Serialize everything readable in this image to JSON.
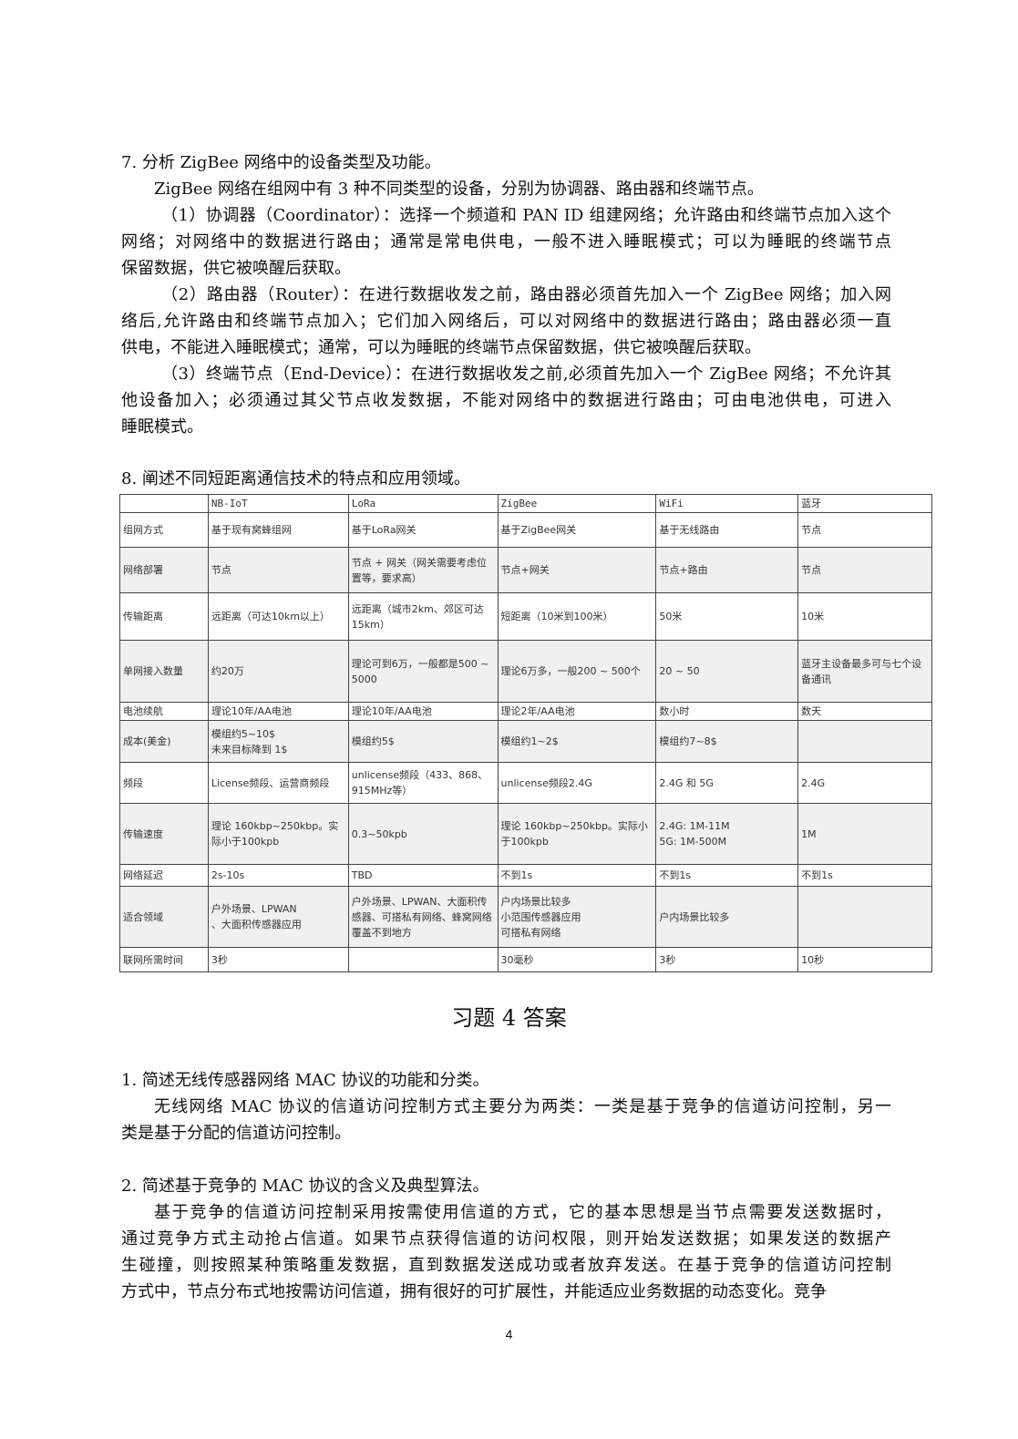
{
  "q7": {
    "title": "7.  分析 ZigBee 网络中的设备类型及功能。",
    "paragraphs": [
      [
        "ZigBee 网络在组网中有 3 种不同类型的设备，分别为协调器、路由器和终端节点。"
      ],
      [
        "（1）协调器（Coordinator）：选择一个频道和 PAN ID 组建网络；允许路由和终端节点加入这个",
        "网络；对网络中的数据进行路由；通常是常电供电，一般不进入睡眠模式；可以为睡眠的终端节点",
        "保留数据，供它被唤醒后获取。"
      ],
      [
        "（2）路由器（Router）：在进行数据收发之前，路由器必须首先加入一个 ZigBee 网络；加入网",
        "络后,允许路由和终端节点加入；它们加入网络后，可以对网络中的数据进行路由；路由器必须一直",
        "供电，不能进入睡眠模式；通常，可以为睡眠的终端节点保留数据，供它被唤醒后获取。"
      ],
      [
        "（3）终端节点（End-Device）：在进行数据收发之前,必须首先加入一个 ZigBee 网络；不允许其",
        "他设备加入；必须通过其父节点收发数据，不能对网络中的数据进行路由；可由电池供电，可进入",
        "睡眠模式。"
      ]
    ]
  },
  "q8": {
    "title": "8.  阐述不同短距离通信技术的特点和应用领域。",
    "table": {
      "headers": [
        "",
        "NB-IoT",
        "LoRa",
        "ZigBee",
        "WiFi",
        "蓝牙"
      ],
      "rows": [
        [
          "组网方式",
          "基于现有窝蜂组网",
          "基于LoRa网关",
          "基于ZigBee网关",
          "基于无线路由",
          "节点"
        ],
        [
          "网络部署",
          "节点",
          "节点 + 网关（网关需要考虑位置等，要求高）",
          "节点+网关",
          "节点+路由",
          "节点"
        ],
        [
          "传输距离",
          "远距离（可达10km以上）",
          "远距离（城市2km、郊区可达15km）",
          "短距离（10米到100米）",
          "50米",
          "10米"
        ],
        [
          "单网接入数量",
          "约20万",
          "理论可到6万，一般都是500 ~ 5000",
          "理论6万多，一般200 ~ 500个",
          "20 ~ 50",
          "蓝牙主设备最多可与七个设备通讯"
        ],
        [
          "电池续航",
          "理论10年/AA电池",
          "理论10年/AA电池",
          "理论2年/AA电池",
          "数小时",
          "数天"
        ],
        [
          "成本(美金)",
          "模组约5~10$\n未来目标降到 1$",
          "模组约5$",
          "模组约1~2$",
          "模组约7~8$",
          ""
        ],
        [
          "频段",
          "License频段、运营商频段",
          "unlicense频段（433、868、915MHz等）",
          "unlicense频段2.4G",
          "2.4G 和 5G",
          "2.4G"
        ],
        [
          "传输速度",
          "理论 160kbp~250kbp。实际小于100kpb",
          "0.3~50kpb",
          "理论 160kbp~250kbp。实际小于100kpb",
          "2.4G: 1M-11M\n5G:  1M-500M",
          "1M"
        ],
        [
          "网络延迟",
          "2s-10s",
          "TBD",
          "不到1s",
          "不到1s",
          "不到1s"
        ],
        [
          "适合领域",
          "户外场景、LPWAN\n、大面积传感器应用",
          "户外场景、LPWAN、大面积传感器、可搭私有网络、蜂窝网络覆盖不到地方",
          "户内场景比较多\n小范围传感器应用\n可搭私有网络",
          "户内场景比较多",
          ""
        ],
        [
          "联网所需时间",
          "3秒",
          "",
          "30毫秒",
          "3秒",
          "10秒"
        ]
      ]
    }
  },
  "chapter_title": "习题 4 答案",
  "a1": {
    "title": "1.  简述无线传感器网络 MAC 协议的功能和分类。",
    "lines": [
      "无线网络 MAC 协议的信道访问控制方式主要分为两类：一类是基于竞争的信道访问控制，另一",
      "类是基于分配的信道访问控制。"
    ]
  },
  "a2": {
    "title": "2.  简述基于竞争的 MAC 协议的含义及典型算法。",
    "lines": [
      "基于竞争的信道访问控制采用按需使用信道的方式，它的基本思想是当节点需要发送数据时，",
      "通过竞争方式主动抢占信道。如果节点获得信道的访问权限，则开始发送数据；如果发送的数据产",
      "生碰撞，则按照某种策略重发数据，直到数据发送成功或者放弃发送。在基于竞争的信道访问控制",
      "方式中，节点分布式地按需访问信道，拥有很好的可扩展性，并能适应业务数据的动态变化。竞争"
    ]
  },
  "page_number": "4"
}
